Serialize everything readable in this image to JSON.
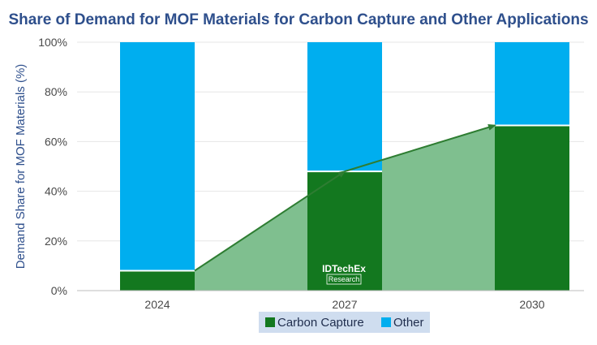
{
  "chart_data": {
    "type": "bar",
    "stacked": true,
    "title": "Share of Demand for MOF Materials for Carbon Capture and Other Applications",
    "xlabel": "",
    "ylabel": "Demand Share for MOF Materials (%)",
    "ylim": [
      0,
      100
    ],
    "ytick_values": [
      0,
      20,
      40,
      60,
      80,
      100
    ],
    "ytick_labels": [
      "0%",
      "20%",
      "40%",
      "60%",
      "80%",
      "100%"
    ],
    "categories": [
      "2024",
      "2027",
      "2030"
    ],
    "series": [
      {
        "name": "Carbon Capture",
        "values": [
          8,
          48,
          66.5
        ],
        "color": "#13781F"
      },
      {
        "name": "Other",
        "values": [
          92,
          52,
          33.5
        ],
        "color": "#00AEEF"
      }
    ],
    "trend_area": {
      "series": "Carbon Capture",
      "color": "#7FBF8F",
      "line_color": "#2E7D32"
    },
    "grid": true,
    "legend_position": "bottom",
    "watermark": {
      "name": "IDTechEx",
      "sub": "Research"
    }
  }
}
